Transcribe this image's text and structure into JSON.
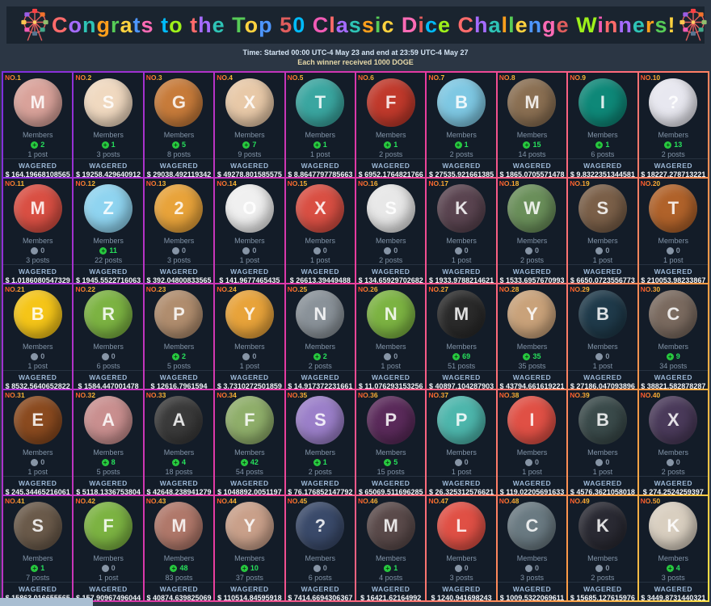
{
  "header": {
    "title": "Congrats to the Top 50 Classic Dice Challenge Winners!",
    "title_palette": [
      "#ff6b6b",
      "#a56bff",
      "#2ec4b6",
      "#ff9f1c",
      "#57cc57",
      "#ffd23f",
      "#4d96ff",
      "#ff6bb5",
      "#e05d5d",
      "#00bbf9",
      "#9ef01a",
      "#f15bb5"
    ],
    "time_line": "Time: Started 00:00 UTC-4 May 23 and end at 23:59 UTC-4 May 27",
    "reward_line": "Each winner received 1000 DOGE",
    "left_icon": "ferris-wheel",
    "right_icon": "ferris-wheel"
  },
  "labels": {
    "members": "Members",
    "wagered": "WAGERED",
    "rank_prefix": "NO."
  },
  "colors": {
    "page_bg": "#2b3644",
    "header_bg": "#1a242f",
    "card_bg": "#131c28",
    "members_positive": "#27e05c",
    "members_zero": "#8795a6",
    "wagered_label": "#9cb8d6",
    "border_gradient": [
      "#7b2fe0",
      "#b332c8",
      "#e73aa0",
      "#ff6b7a",
      "#ff9b45",
      "#ffe345"
    ]
  },
  "winners": [
    {
      "rank": "NO.1",
      "name": "M O Z A",
      "members": 2,
      "posts": "1 post",
      "wagered": "$ 164.19668108565",
      "avatar_bg": "#d9a29a"
    },
    {
      "rank": "NO.2",
      "name": "🧂 salty 🧂",
      "members": 1,
      "posts": "3 posts",
      "wagered": "$ 19258.429640912",
      "avatar_bg": "#f0d9c0"
    },
    {
      "rank": "NO.3",
      "name": "GenietaNs",
      "members": 5,
      "posts": "8 posts",
      "wagered": "$ 29038.492119342",
      "avatar_bg": "#c77b3a"
    },
    {
      "rank": "NO.4",
      "name": "Xuxu",
      "members": 7,
      "posts": "9 posts",
      "wagered": "$ 49278.801585575",
      "avatar_bg": "#e8c9a8"
    },
    {
      "rank": "NO.5",
      "name": "TH NHI2",
      "members": 1,
      "posts": "1 post",
      "wagered": "$ 8.8647797785663",
      "avatar_bg": "#3aa6a0"
    },
    {
      "rank": "NO.6",
      "name": "FULL RED",
      "members": 1,
      "posts": "2 posts",
      "wagered": "$ 6952.1764821766",
      "avatar_bg": "#c0392b"
    },
    {
      "rank": "NO.7",
      "name": "ღbanģlåñhღ",
      "members": 1,
      "posts": "2 posts",
      "wagered": "$ 27535.921661385",
      "avatar_bg": "#7ec8e3"
    },
    {
      "rank": "NO.8",
      "name": "MaksatMe",
      "members": 15,
      "posts": "14 posts",
      "wagered": "$ 1865.0705571478",
      "avatar_bg": "#8a6f52"
    },
    {
      "rank": "NO.9",
      "name": "I am PMT",
      "members": 1,
      "posts": "6 posts",
      "wagered": "$ 9.8322351344581",
      "avatar_bg": "#0e8878"
    },
    {
      "rank": "NO.10",
      "name": "⌐‿⌐",
      "members": 13,
      "posts": "2 posts",
      "wagered": "$ 18227.278713221",
      "avatar_bg": "#e8e8f0"
    },
    {
      "rank": "NO.11",
      "name": "mtbyus",
      "members": 0,
      "posts": "3 posts",
      "wagered": "$ 1.0186080547329",
      "avatar_bg": "#d94f43"
    },
    {
      "rank": "NO.12",
      "name": "Zuccky",
      "members": 11,
      "posts": "22 posts",
      "wagered": "$ 1945.5522716063",
      "avatar_bg": "#8fd4f0"
    },
    {
      "rank": "NO.13",
      "name": "26Rola",
      "members": 0,
      "posts": "3 posts",
      "wagered": "$ 392.04800833565",
      "avatar_bg": "#e8a33a"
    },
    {
      "rank": "NO.14",
      "name": "Opanats",
      "members": 0,
      "posts": "1 post",
      "wagered": "$ 141.9677465435",
      "avatar_bg": "#f0f0f0"
    },
    {
      "rank": "NO.15",
      "name": "X86",
      "members": 0,
      "posts": "1 post",
      "wagered": "$ 26613.39449488",
      "avatar_bg": "#d94f43"
    },
    {
      "rank": "NO.16",
      "name": "Soccer555",
      "members": 0,
      "posts": "2 posts",
      "wagered": "$ 134.65929702682",
      "avatar_bg": "#e8e8e8"
    },
    {
      "rank": "NO.17",
      "name": "Ksenia",
      "members": 0,
      "posts": "1 post",
      "wagered": "$ 1933.9788214621",
      "avatar_bg": "#5a4450"
    },
    {
      "rank": "NO.18",
      "name": "Wolfero",
      "members": 0,
      "posts": "2 posts",
      "wagered": "$ 1533.6957670993",
      "avatar_bg": "#6a8f5a"
    },
    {
      "rank": "NO.19",
      "name": "sevan",
      "members": 0,
      "posts": "1 post",
      "wagered": "$ 6650.0723556773",
      "avatar_bg": "#7a5f48"
    },
    {
      "rank": "NO.20",
      "name": "Teemo123",
      "members": 0,
      "posts": "1 post",
      "wagered": "$ 210053.98233867",
      "avatar_bg": "#b0622a"
    },
    {
      "rank": "NO.21",
      "name": "bom88",
      "members": 0,
      "posts": "1 post",
      "wagered": "$ 8532.5640652822",
      "avatar_bg": "#f5c518"
    },
    {
      "rank": "NO.22",
      "name": "rig90",
      "members": 0,
      "posts": "6 posts",
      "wagered": "$ 1584.447001478",
      "avatar_bg": "#7cb342"
    },
    {
      "rank": "NO.23",
      "name": "Pierced",
      "members": 2,
      "posts": "5 posts",
      "wagered": "$ 12616.7961594",
      "avatar_bg": "#b08d6e"
    },
    {
      "rank": "NO.24",
      "name": "YarYe",
      "members": 0,
      "posts": "1 post",
      "wagered": "$ 3.7310272501859",
      "avatar_bg": "#e8a33a"
    },
    {
      "rank": "NO.25",
      "name": "Nashka",
      "members": 2,
      "posts": "2 posts",
      "wagered": "$ 14.917372231661",
      "avatar_bg": "#8a9299"
    },
    {
      "rank": "NO.26",
      "name": "Narkoman",
      "members": 0,
      "posts": "1 post",
      "wagered": "$ 11.076293153256",
      "avatar_bg": "#7cb342"
    },
    {
      "rank": "NO.27",
      "name": "⭐meowth⭐",
      "members": 69,
      "posts": "51 posts",
      "wagered": "$ 40897.104287903",
      "avatar_bg": "#2a2a2a"
    },
    {
      "rank": "NO.28",
      "name": "Yokotaカサンドラ",
      "members": 35,
      "posts": "35 posts",
      "wagered": "$ 43794.661619221",
      "avatar_bg": "#c9a27a"
    },
    {
      "rank": "NO.29",
      "name": "꧁Bet_Pro꧂",
      "members": 0,
      "posts": "1 post",
      "wagered": "$ 27186.047093896",
      "avatar_bg": "#1f3a4a"
    },
    {
      "rank": "NO.30",
      "name": "Cran",
      "members": 9,
      "posts": "34 posts",
      "wagered": "$ 38821.582878287",
      "avatar_bg": "#7a6a5f"
    },
    {
      "rank": "NO.31",
      "name": "EndryUA",
      "members": 0,
      "posts": "1 post",
      "wagered": "$ 245.34465216061",
      "avatar_bg": "#8a4a1f"
    },
    {
      "rank": "NO.32",
      "name": "Azureking",
      "members": 8,
      "posts": "5 posts",
      "wagered": "$ 5118.1336753804",
      "avatar_bg": "#c98f8f"
    },
    {
      "rank": "NO.33",
      "name": "💀 AcidBurn",
      "members": 4,
      "posts": "18 posts",
      "wagered": "$ 42648.238941279",
      "avatar_bg": "#3a3a3a"
    },
    {
      "rank": "NO.34",
      "name": "Fedupkpc",
      "members": 42,
      "posts": "54 posts",
      "wagered": "$ 1048892.0051197",
      "avatar_bg": "#8fae6a"
    },
    {
      "rank": "NO.35",
      "name": "🔥 Sinigr✳",
      "members": 1,
      "posts": "2 posts",
      "wagered": "$ 76.176852147792",
      "avatar_bg": "#9b7fc9"
    },
    {
      "rank": "NO.36",
      "name": "PyB_69",
      "members": 5,
      "posts": "15 posts",
      "wagered": "$ 65069.511696285",
      "avatar_bg": "#5a2a5a"
    },
    {
      "rank": "NO.37",
      "name": "pcom",
      "members": 0,
      "posts": "1 post",
      "wagered": "$ 26.325312576621",
      "avatar_bg": "#4db6ac"
    },
    {
      "rank": "NO.38",
      "name": "IM V2R",
      "members": 0,
      "posts": "1 post",
      "wagered": "$ 119.02205691633",
      "avatar_bg": "#e05045"
    },
    {
      "rank": "NO.39",
      "name": "BaranAP",
      "members": 0,
      "posts": "1 post",
      "wagered": "$ 4576.3621058018",
      "avatar_bg": "#3a4a4a"
    },
    {
      "rank": "NO.40",
      "name": "XRPzwag",
      "members": 0,
      "posts": "2 posts",
      "wagered": "$ 274.2524259397",
      "avatar_bg": "#4a3a5a"
    },
    {
      "rank": "NO.41",
      "name": "🌹 SINGLE AREMY 🌹",
      "members": 1,
      "posts": "7 posts",
      "wagered": "$ 15863.016655565",
      "avatar_bg": "#6a5a4a"
    },
    {
      "rank": "NO.42",
      "name": "foofa2017",
      "members": 0,
      "posts": "1 post",
      "wagered": "$ 157.90967496044",
      "avatar_bg": "#7cb342"
    },
    {
      "rank": "NO.43",
      "name": "MARY.BC.GAME🇵🇭",
      "members": 48,
      "posts": "83 posts",
      "wagered": "$ 40874.639825069",
      "avatar_bg": "#b0786a"
    },
    {
      "rank": "NO.44",
      "name": "Yizzle",
      "members": 10,
      "posts": "37 posts",
      "wagered": "$ 110514.84595918",
      "avatar_bg": "#c9a08a"
    },
    {
      "rank": "NO.45",
      "name": "¥©€-©©",
      "members": 0,
      "posts": "6 posts",
      "wagered": "$ 7414.6694306367",
      "avatar_bg": "#3a4a6a"
    },
    {
      "rank": "NO.46",
      "name": "💛 May 20 💛",
      "members": 1,
      "posts": "4 posts",
      "wagered": "$ 16421.62164992",
      "avatar_bg": "#5a4a4a"
    },
    {
      "rank": "NO.47",
      "name": "last santino",
      "members": 0,
      "posts": "3 posts",
      "wagered": "$ 1240.941698243",
      "avatar_bg": "#e05045"
    },
    {
      "rank": "NO.48",
      "name": "Covid192020",
      "members": 0,
      "posts": "3 posts",
      "wagered": "$ 1009.5322069611",
      "avatar_bg": "#6a7a82"
    },
    {
      "rank": "NO.49",
      "name": "KayGee562",
      "members": 0,
      "posts": "2 posts",
      "wagered": "$ 15685.127615976",
      "avatar_bg": "#2a2a33"
    },
    {
      "rank": "NO.50",
      "name": "Koe💙💙",
      "members": 4,
      "posts": "3 posts",
      "wagered": "$ 3449.8731440321",
      "avatar_bg": "#d9cfc0"
    }
  ]
}
